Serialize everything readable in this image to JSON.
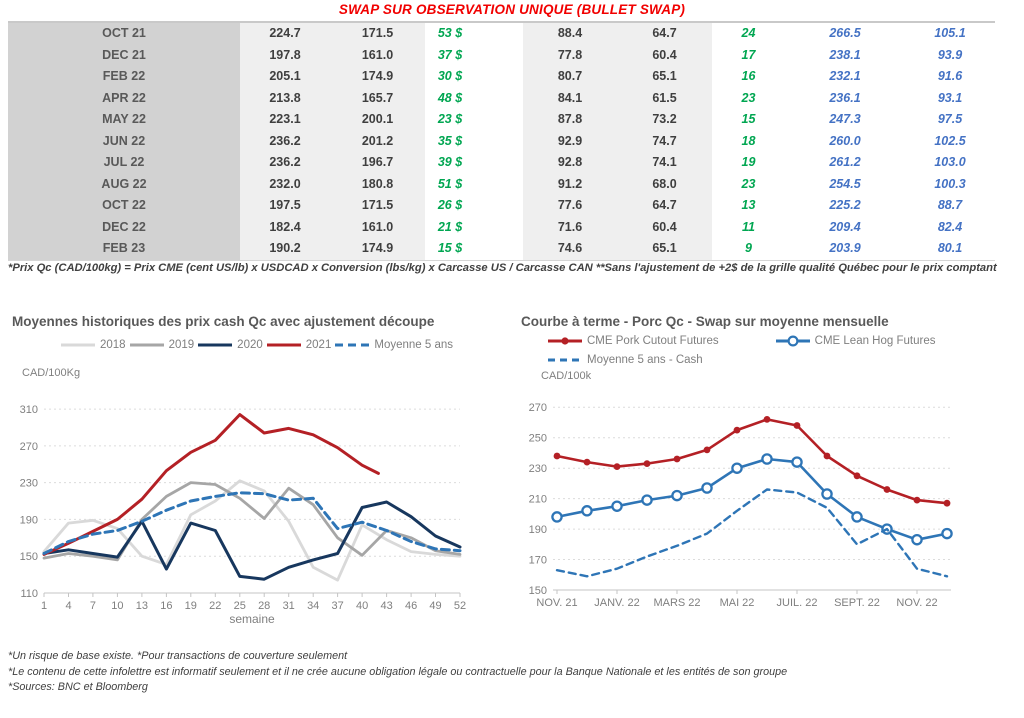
{
  "title": "SWAP SUR OBSERVATION UNIQUE (BULLET SWAP)",
  "colors": {
    "title_red": "#f10000",
    "chart_red": "#b42025",
    "navy": "#17375e",
    "blue": "#2e75b6",
    "table_green": "#00a651",
    "table_blue": "#4472c4",
    "gray_2019": "#a6a6a6",
    "gray_2018": "#d9d9d9"
  },
  "table": {
    "rows": [
      [
        "OCT 21",
        "224.7",
        "171.5",
        "53 $",
        "88.4",
        "64.7",
        "24",
        "266.5",
        "105.1"
      ],
      [
        "DEC 21",
        "197.8",
        "161.0",
        "37 $",
        "77.8",
        "60.4",
        "17",
        "238.1",
        "93.9"
      ],
      [
        "FEB 22",
        "205.1",
        "174.9",
        "30 $",
        "80.7",
        "65.1",
        "16",
        "232.1",
        "91.6"
      ],
      [
        "APR 22",
        "213.8",
        "165.7",
        "48 $",
        "84.1",
        "61.5",
        "23",
        "236.1",
        "93.1"
      ],
      [
        "MAY 22",
        "223.1",
        "200.1",
        "23 $",
        "87.8",
        "73.2",
        "15",
        "247.3",
        "97.5"
      ],
      [
        "JUN 22",
        "236.2",
        "201.2",
        "35 $",
        "92.9",
        "74.7",
        "18",
        "260.0",
        "102.5"
      ],
      [
        "JUL 22",
        "236.2",
        "196.7",
        "39 $",
        "92.8",
        "74.1",
        "19",
        "261.2",
        "103.0"
      ],
      [
        "AUG 22",
        "232.0",
        "180.8",
        "51 $",
        "91.2",
        "68.0",
        "23",
        "254.5",
        "100.3"
      ],
      [
        "OCT 22",
        "197.5",
        "171.5",
        "26 $",
        "77.6",
        "64.7",
        "13",
        "225.2",
        "88.7"
      ],
      [
        "DEC 22",
        "182.4",
        "161.0",
        "21 $",
        "71.6",
        "60.4",
        "11",
        "209.4",
        "82.4"
      ],
      [
        "FEB 23",
        "190.2",
        "174.9",
        "15 $",
        "74.6",
        "65.1",
        "9",
        "203.9",
        "80.1"
      ]
    ]
  },
  "table_footnote": "*Prix Qc (CAD/100kg) = Prix CME (cent US/lb) x USDCAD x Conversion (lbs/kg) x Carcasse US / Carcasse CAN **Sans l'ajustement de +2$ de la grille qualité Québec pour le prix comptant",
  "chart_data": [
    {
      "type": "line",
      "title": "Moyennes historiques des prix cash Qc avec ajustement découpe",
      "ylabel_unit": "CAD/100Kg",
      "xlabel": "semaine",
      "ylim": [
        110,
        334
      ],
      "yticks": [
        110,
        150,
        190,
        230,
        270,
        310
      ],
      "xdomain": [
        1,
        52
      ],
      "xticks": [
        1,
        4,
        7,
        10,
        13,
        16,
        19,
        22,
        25,
        28,
        31,
        34,
        37,
        40,
        43,
        46,
        49,
        52
      ],
      "grid": true,
      "legend_position": "top-center",
      "series": [
        {
          "name": "2018",
          "color": "#d9d9d9",
          "width": 2.8,
          "x": [
            1,
            4,
            7,
            10,
            13,
            16,
            19,
            22,
            25,
            28,
            31,
            34,
            37,
            40,
            43,
            46,
            49,
            52
          ],
          "y": [
            155,
            186,
            189,
            180,
            150,
            141,
            195,
            210,
            232,
            221,
            188,
            138,
            124,
            184,
            168,
            155,
            152,
            150
          ]
        },
        {
          "name": "2019",
          "color": "#a6a6a6",
          "width": 2.8,
          "x": [
            1,
            4,
            7,
            10,
            13,
            16,
            19,
            22,
            25,
            28,
            31,
            34,
            37,
            40,
            43,
            46,
            49,
            52
          ],
          "y": [
            148,
            153,
            150,
            146,
            190,
            215,
            230,
            228,
            213,
            191,
            224,
            206,
            170,
            151,
            178,
            170,
            156,
            152
          ]
        },
        {
          "name": "2020",
          "color": "#17375e",
          "width": 3,
          "x": [
            1,
            4,
            7,
            10,
            13,
            16,
            19,
            22,
            25,
            28,
            31,
            34,
            37,
            40,
            43,
            46,
            49,
            52
          ],
          "y": [
            153,
            157,
            153,
            149,
            188,
            136,
            186,
            178,
            128,
            125,
            138,
            146,
            153,
            203,
            209,
            193,
            172,
            160
          ]
        },
        {
          "name": "2021",
          "color": "#b42025",
          "width": 3,
          "x": [
            1,
            4,
            7,
            10,
            13,
            16,
            19,
            22,
            25,
            28,
            31,
            34,
            37,
            40,
            42
          ],
          "y": [
            152,
            164,
            177,
            190,
            212,
            243,
            263,
            276,
            304,
            284,
            289,
            282,
            268,
            249,
            240
          ]
        },
        {
          "name": "Moyenne 5 ans",
          "color": "#2e75b6",
          "width": 3,
          "dash": "8,5",
          "x": [
            1,
            4,
            7,
            10,
            13,
            16,
            19,
            22,
            25,
            28,
            31,
            34,
            37,
            40,
            43,
            46,
            49,
            52
          ],
          "y": [
            153,
            166,
            174,
            178,
            188,
            200,
            210,
            215,
            219,
            218,
            211,
            213,
            180,
            187,
            178,
            166,
            158,
            156
          ]
        }
      ]
    },
    {
      "type": "line",
      "title": "Courbe à terme - Porc Qc - Swap sur moyenne mensuelle",
      "ylabel_unit": "CAD/100k",
      "xlabel": "",
      "ylim": [
        150,
        280
      ],
      "yticks": [
        150,
        170,
        190,
        210,
        230,
        250,
        270
      ],
      "xdomain": [
        0,
        13
      ],
      "xticks": [
        {
          "pos": 0,
          "label": "NOV. 21"
        },
        {
          "pos": 2,
          "label": "JANV. 22"
        },
        {
          "pos": 4,
          "label": "MARS 22"
        },
        {
          "pos": 6,
          "label": "MAI 22"
        },
        {
          "pos": 8,
          "label": "JUIL. 22"
        },
        {
          "pos": 10,
          "label": "SEPT. 22"
        },
        {
          "pos": 12,
          "label": "NOV. 22"
        }
      ],
      "grid": true,
      "legend_position": "top-left",
      "series": [
        {
          "name": "CME Pork Cutout Futures",
          "color": "#b42025",
          "width": 2.6,
          "marker": "filled",
          "y": [
            238,
            234,
            231,
            233,
            236,
            242,
            255,
            262,
            258,
            238,
            225,
            216,
            209,
            207
          ]
        },
        {
          "name": "CME Lean Hog Futures",
          "color": "#2e75b6",
          "width": 2.6,
          "marker": "open",
          "y": [
            198,
            202,
            205,
            209,
            212,
            217,
            230,
            236,
            234,
            213,
            198,
            190,
            183,
            187
          ]
        },
        {
          "name": "Moyenne 5 ans - Cash",
          "color": "#2e75b6",
          "width": 2.4,
          "dash": "7,5",
          "y": [
            163,
            159,
            164,
            172,
            179,
            187,
            202,
            216,
            214,
            204,
            180,
            190,
            164,
            159
          ]
        }
      ]
    }
  ],
  "footer": [
    "*Un risque de base existe. *Pour transactions de couverture seulement",
    "*Le contenu de cette infolettre est informatif seulement et il ne crée aucune obligation légale ou contractuelle pour la Banque Nationale et les entités de son groupe",
    "*Sources: BNC et Bloomberg"
  ]
}
